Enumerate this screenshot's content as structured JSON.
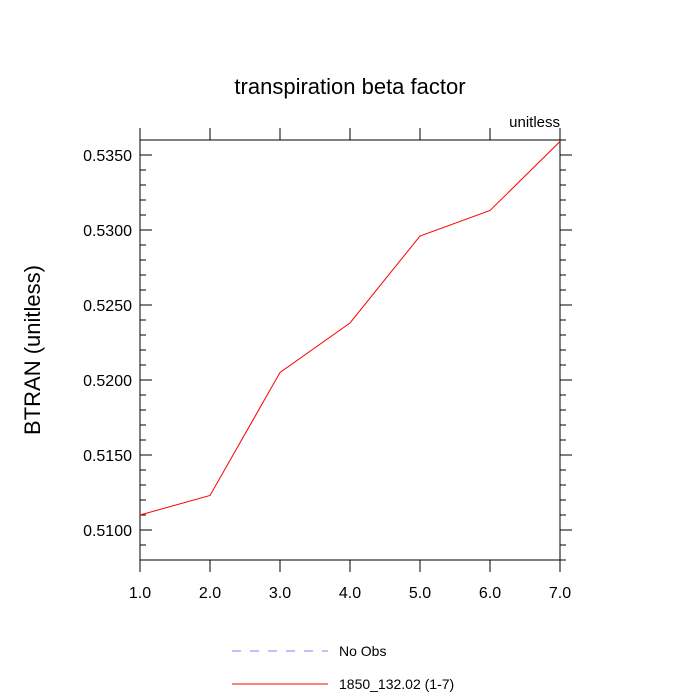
{
  "chart_data": {
    "type": "line",
    "title": "transpiration beta factor",
    "units": "unitless",
    "ylabel": "BTRAN  (unitless)",
    "xlabel": "",
    "xlim": [
      1.0,
      7.0
    ],
    "ylim": [
      0.508,
      0.536
    ],
    "x_ticks": [
      1.0,
      2.0,
      3.0,
      4.0,
      5.0,
      6.0,
      7.0
    ],
    "x_tick_labels": [
      "1.0",
      "2.0",
      "3.0",
      "4.0",
      "5.0",
      "6.0",
      "7.0"
    ],
    "y_ticks": [
      0.51,
      0.515,
      0.52,
      0.525,
      0.53,
      0.535
    ],
    "y_tick_labels": [
      "0.5100",
      "0.5150",
      "0.5200",
      "0.5250",
      "0.5300",
      "0.5350"
    ],
    "grid": false,
    "legend_placement": "bottom-center",
    "series": [
      {
        "name": "1850_132.02 (1-7)",
        "color": "#ff0000",
        "style": "solid",
        "x": [
          1.0,
          2.0,
          3.0,
          4.0,
          5.0,
          6.0,
          7.0
        ],
        "values": [
          0.511,
          0.5123,
          0.5205,
          0.5238,
          0.5296,
          0.5313,
          0.5359
        ]
      }
    ],
    "legend": [
      {
        "label": "No Obs",
        "color": "#8080ff",
        "style": "dashed"
      },
      {
        "label": "1850_132.02 (1-7)",
        "color": "#ff0000",
        "style": "solid"
      }
    ]
  }
}
